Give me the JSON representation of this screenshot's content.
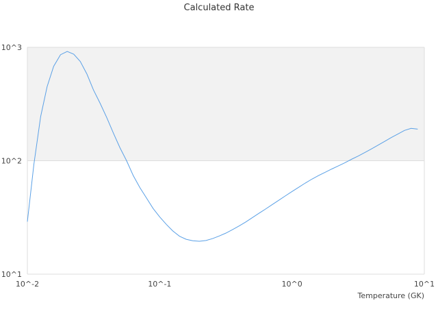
{
  "chart_data": {
    "type": "line",
    "title": "Calculated Rate",
    "xlabel": "Temperature (GK)",
    "ylabel": "",
    "xscale": "log",
    "yscale": "log",
    "xlim": [
      0.01,
      10
    ],
    "ylim": [
      10,
      1000
    ],
    "x_ticks": [
      "10^-2",
      "10^-1",
      "10^0",
      "10^1"
    ],
    "y_ticks": [
      "10^1",
      "10^2",
      "10^3"
    ],
    "shaded_band": [
      100,
      1000
    ],
    "series": [
      {
        "color": "#5aa0e6",
        "points": [
          [
            0.01,
            29
          ],
          [
            0.0112,
            93
          ],
          [
            0.0126,
            245
          ],
          [
            0.0141,
            450
          ],
          [
            0.0158,
            680
          ],
          [
            0.0178,
            860
          ],
          [
            0.02,
            920
          ],
          [
            0.0224,
            870
          ],
          [
            0.0251,
            750
          ],
          [
            0.0282,
            580
          ],
          [
            0.0316,
            420
          ],
          [
            0.0355,
            320
          ],
          [
            0.0398,
            240
          ],
          [
            0.0447,
            175
          ],
          [
            0.0501,
            130
          ],
          [
            0.0562,
            100
          ],
          [
            0.0631,
            74
          ],
          [
            0.0708,
            58
          ],
          [
            0.0794,
            47
          ],
          [
            0.0891,
            38
          ],
          [
            0.1,
            32
          ],
          [
            0.1122,
            27.5
          ],
          [
            0.1259,
            24
          ],
          [
            0.1413,
            21.6
          ],
          [
            0.1585,
            20.3
          ],
          [
            0.1778,
            19.7
          ],
          [
            0.1995,
            19.5
          ],
          [
            0.2239,
            19.8
          ],
          [
            0.2512,
            20.6
          ],
          [
            0.2818,
            21.7
          ],
          [
            0.3162,
            23.0
          ],
          [
            0.3548,
            24.7
          ],
          [
            0.3981,
            26.6
          ],
          [
            0.4467,
            28.8
          ],
          [
            0.5012,
            31.5
          ],
          [
            0.5623,
            34.4
          ],
          [
            0.631,
            37.5
          ],
          [
            0.7079,
            41.0
          ],
          [
            0.7943,
            44.8
          ],
          [
            0.8913,
            49.0
          ],
          [
            1.0,
            53.5
          ],
          [
            1.122,
            58.3
          ],
          [
            1.2589,
            63.5
          ],
          [
            1.4125,
            68.8
          ],
          [
            1.5849,
            74.0
          ],
          [
            1.7783,
            79.0
          ],
          [
            1.9953,
            84.5
          ],
          [
            2.2387,
            90.0
          ],
          [
            2.5119,
            96.0
          ],
          [
            2.8184,
            103
          ],
          [
            3.1623,
            110
          ],
          [
            3.5481,
            118
          ],
          [
            3.9811,
            127
          ],
          [
            4.4668,
            137
          ],
          [
            5.0119,
            148
          ],
          [
            5.6234,
            160
          ],
          [
            6.3096,
            172
          ],
          [
            7.0795,
            185
          ],
          [
            7.9433,
            193
          ],
          [
            8.9125,
            190
          ]
        ]
      }
    ]
  }
}
